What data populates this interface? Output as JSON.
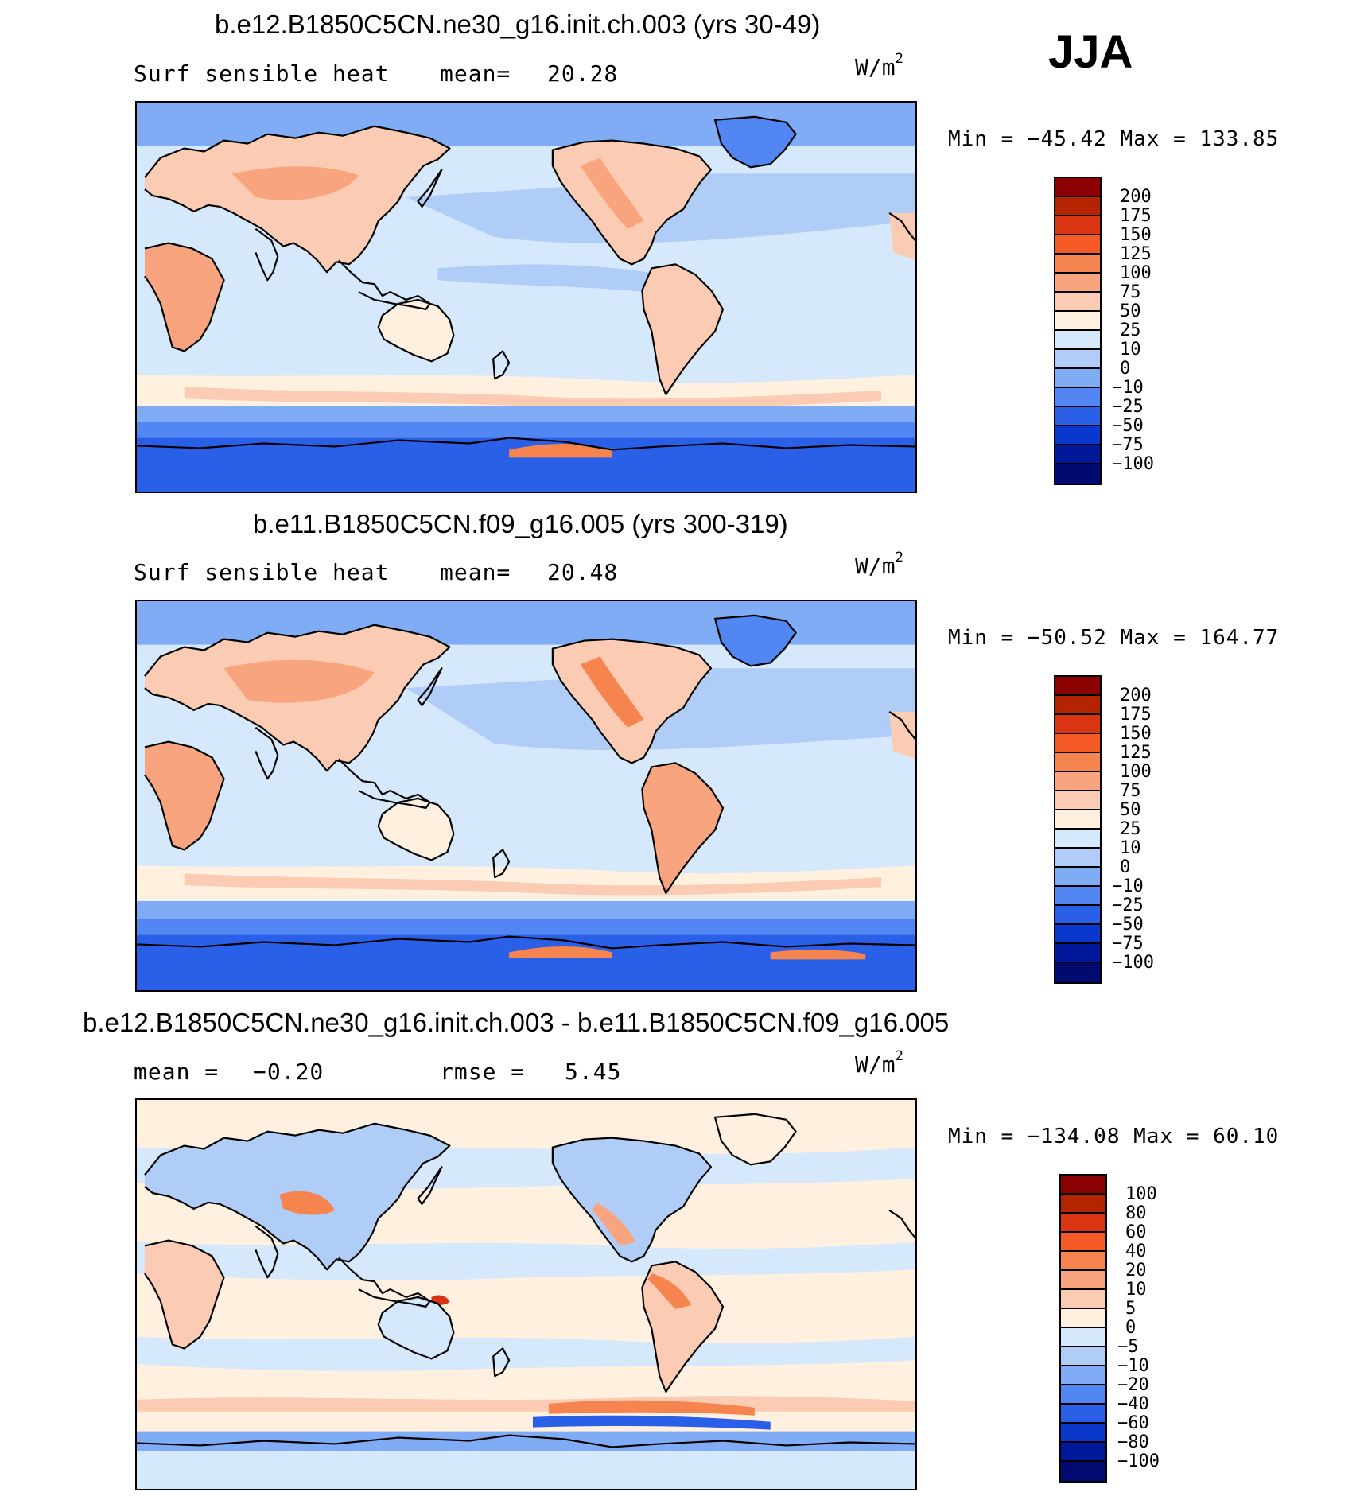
{
  "season": "JJA",
  "units_base": "W/m",
  "units_exp": "2",
  "panels": [
    {
      "title": "b.e12.B1850C5CN.ne30_g16.init.ch.003 (yrs 30-49)",
      "left_label": "Surf sensible heat",
      "stat_label": "mean=",
      "stat_value": "20.28",
      "minmax": "Min = −45.42 Max = 133.85"
    },
    {
      "title": "b.e11.B1850C5CN.f09_g16.005 (yrs 300-319)",
      "left_label": "Surf sensible heat",
      "stat_label": "mean=",
      "stat_value": "20.48",
      "minmax": "Min = −50.52 Max = 164.77"
    },
    {
      "title": "b.e12.B1850C5CN.ne30_g16.init.ch.003 - b.e11.B1850C5CN.f09_g16.005",
      "left_label": "mean =",
      "left_value": "−0.20",
      "stat_label": "rmse =",
      "stat_value": "5.45",
      "minmax": "Min = −134.08 Max =   60.10"
    }
  ],
  "colorbars": [
    {
      "levels": [
        "200",
        "175",
        "150",
        "125",
        "100",
        "75",
        "50",
        "25",
        "10",
        "0",
        "−10",
        "−25",
        "−50",
        "−75",
        "−100"
      ],
      "colors": [
        "#8b0000",
        "#b52400",
        "#d93512",
        "#f55a26",
        "#f5844f",
        "#f7a47f",
        "#fccbb4",
        "#fff0e0",
        "#d6e8fb",
        "#b0cdf7",
        "#80abf5",
        "#5286f2",
        "#2a5fe8",
        "#0a38cc",
        "#00189a",
        "#000a70"
      ]
    },
    {
      "levels": [
        "200",
        "175",
        "150",
        "125",
        "100",
        "75",
        "50",
        "25",
        "10",
        "0",
        "−10",
        "−25",
        "−50",
        "−75",
        "−100"
      ],
      "colors": [
        "#8b0000",
        "#b52400",
        "#d93512",
        "#f55a26",
        "#f5844f",
        "#f7a47f",
        "#fccbb4",
        "#fff0e0",
        "#d6e8fb",
        "#b0cdf7",
        "#80abf5",
        "#5286f2",
        "#2a5fe8",
        "#0a38cc",
        "#00189a",
        "#000a70"
      ]
    },
    {
      "levels": [
        "100",
        "80",
        "60",
        "40",
        "20",
        "10",
        "5",
        "0",
        "−5",
        "−10",
        "−20",
        "−40",
        "−60",
        "−80",
        "−100"
      ],
      "colors": [
        "#8b0000",
        "#b52400",
        "#d93512",
        "#f55a26",
        "#f5844f",
        "#f7a47f",
        "#fccbb4",
        "#fff0e0",
        "#d6e8fb",
        "#b0cdf7",
        "#80abf5",
        "#5286f2",
        "#2a5fe8",
        "#0a38cc",
        "#00189a",
        "#000a70"
      ]
    }
  ]
}
